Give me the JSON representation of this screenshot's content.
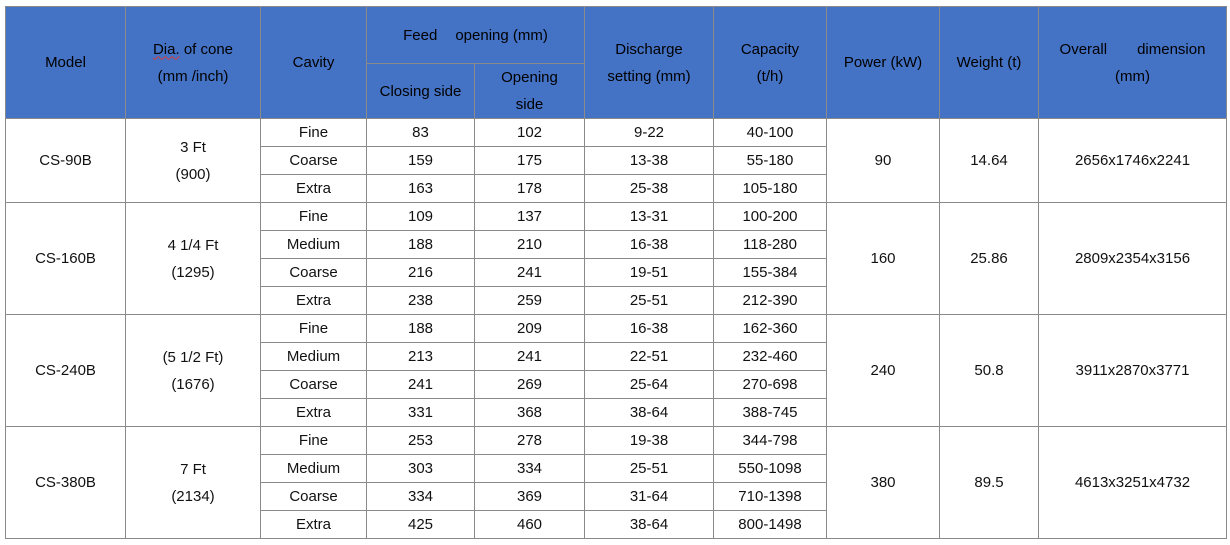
{
  "headers": {
    "model": "Model",
    "dia_line1_underlined": "Dia.",
    "dia_line1_rest": " of cone",
    "dia_line2": "(mm /inch)",
    "cavity": "Cavity",
    "feed_opening_a": "Feed",
    "feed_opening_b": "opening (mm)",
    "closing_side": "Closing side",
    "opening_side_line1": "Opening",
    "opening_side_line2": "side",
    "discharge_line1": "Discharge",
    "discharge_line2": "setting (mm)",
    "capacity_line1": "Capacity",
    "capacity_line2": "(t/h)",
    "power": "Power (kW)",
    "weight": "Weight (t)",
    "dimension_a": "Overall",
    "dimension_b": "dimension",
    "dimension_line2": "(mm)"
  },
  "groups": [
    {
      "model": "CS-90B",
      "dia_line1": "3 Ft",
      "dia_line2": "(900)",
      "power": "90",
      "weight": "14.64",
      "dimension": "2656x1746x2241",
      "rows": [
        {
          "cavity": "Fine",
          "closing": "83",
          "opening": "102",
          "discharge": "9-22",
          "capacity": "40-100"
        },
        {
          "cavity": "Coarse",
          "closing": "159",
          "opening": "175",
          "discharge": "13-38",
          "capacity": "55-180"
        },
        {
          "cavity": "Extra",
          "closing": "163",
          "opening": "178",
          "discharge": "25-38",
          "capacity": "105-180"
        }
      ]
    },
    {
      "model": "CS-160B",
      "dia_line1": "4 1/4 Ft",
      "dia_line2": "(1295)",
      "power": "160",
      "weight": "25.86",
      "dimension": "2809x2354x3156",
      "rows": [
        {
          "cavity": "Fine",
          "closing": "109",
          "opening": "137",
          "discharge": "13-31",
          "capacity": "100-200"
        },
        {
          "cavity": "Medium",
          "closing": "188",
          "opening": "210",
          "discharge": "16-38",
          "capacity": "118-280"
        },
        {
          "cavity": "Coarse",
          "closing": "216",
          "opening": "241",
          "discharge": "19-51",
          "capacity": "155-384"
        },
        {
          "cavity": "Extra",
          "closing": "238",
          "opening": "259",
          "discharge": "25-51",
          "capacity": "212-390"
        }
      ]
    },
    {
      "model": "CS-240B",
      "dia_line1": "(5 1/2 Ft)",
      "dia_line2": "(1676)",
      "power": "240",
      "weight": "50.8",
      "dimension": "3911x2870x3771",
      "rows": [
        {
          "cavity": "Fine",
          "closing": "188",
          "opening": "209",
          "discharge": "16-38",
          "capacity": "162-360"
        },
        {
          "cavity": "Medium",
          "closing": "213",
          "opening": "241",
          "discharge": "22-51",
          "capacity": "232-460"
        },
        {
          "cavity": "Coarse",
          "closing": "241",
          "opening": "269",
          "discharge": "25-64",
          "capacity": "270-698"
        },
        {
          "cavity": "Extra",
          "closing": "331",
          "opening": "368",
          "discharge": "38-64",
          "capacity": "388-745"
        }
      ]
    },
    {
      "model": "CS-380B",
      "dia_line1": "7 Ft",
      "dia_line2": "(2134)",
      "power": "380",
      "weight": "89.5",
      "dimension": "4613x3251x4732",
      "rows": [
        {
          "cavity": "Fine",
          "closing": "253",
          "opening": "278",
          "discharge": "19-38",
          "capacity": "344-798"
        },
        {
          "cavity": "Medium",
          "closing": "303",
          "opening": "334",
          "discharge": "25-51",
          "capacity": "550-1098"
        },
        {
          "cavity": "Coarse",
          "closing": "334",
          "opening": "369",
          "discharge": "31-64",
          "capacity": "710-1398"
        },
        {
          "cavity": "Extra",
          "closing": "425",
          "opening": "460",
          "discharge": "38-64",
          "capacity": "800-1498"
        }
      ]
    }
  ],
  "colors": {
    "header_bg": "#4472c4",
    "grid": "#8a8a8a",
    "spellcheck_underline": "#d23c3c"
  }
}
